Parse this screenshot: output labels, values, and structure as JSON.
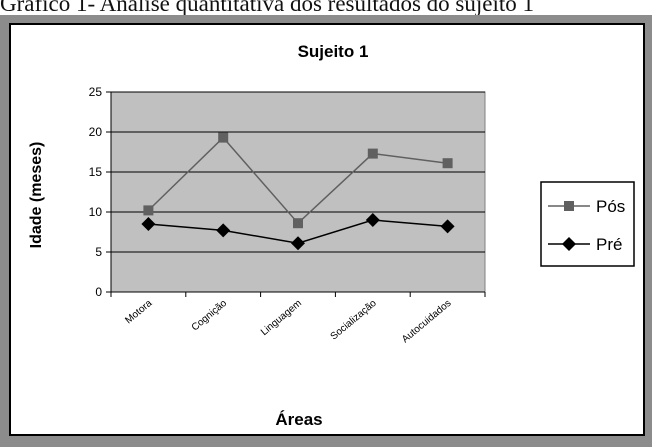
{
  "page": {
    "caption": "Gráfico 1- Análise quantitativa dos resultados do sujeito 1"
  },
  "chart_data": {
    "type": "line",
    "title": "Sujeito 1",
    "xlabel": "Áreas",
    "ylabel": "Idade (meses)",
    "categories": [
      "Motora",
      "Cognição",
      "Linguagem",
      "Socialização",
      "Autocuidados"
    ],
    "ylim": [
      0,
      25
    ],
    "yticks": [
      0,
      5,
      10,
      15,
      20,
      25
    ],
    "grid": true,
    "legend_position": "right",
    "plot_background": "#c0c0c0",
    "series": [
      {
        "name": "Pós",
        "values": [
          10.2,
          19.3,
          8.6,
          17.3,
          16.1
        ],
        "color": "#606060",
        "marker": "square"
      },
      {
        "name": "Pré",
        "values": [
          8.5,
          7.7,
          6.1,
          9.0,
          8.2
        ],
        "color": "#000000",
        "marker": "diamond"
      }
    ]
  }
}
